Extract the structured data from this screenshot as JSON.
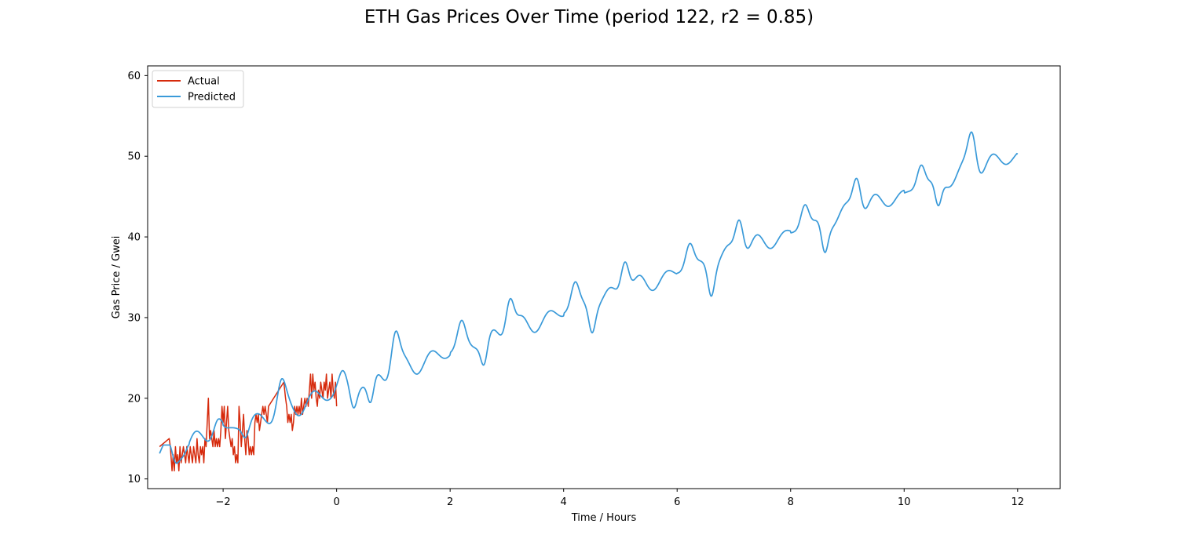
{
  "chart_data": {
    "type": "line",
    "title": "ETH Gas Prices Over Time (period 122, r2 = 0.85)",
    "xlabel": "Time / Hours",
    "ylabel": "Gas Price / Gwei",
    "xlim": [
      -3.33,
      12.75
    ],
    "ylim": [
      8.8,
      61.2
    ],
    "xticks": [
      -2,
      0,
      2,
      4,
      6,
      8,
      10,
      12
    ],
    "yticks": [
      10,
      20,
      30,
      40,
      50,
      60
    ],
    "grid": false,
    "legend_position": "top-left",
    "series": [
      {
        "name": "Actual",
        "color": "#d62a0c",
        "x": [
          -3.12,
          -2.95,
          -2.93,
          -2.9,
          -2.88,
          -2.86,
          -2.84,
          -2.82,
          -2.8,
          -2.78,
          -2.76,
          -2.74,
          -2.72,
          -2.7,
          -2.68,
          -2.66,
          -2.64,
          -2.62,
          -2.6,
          -2.58,
          -2.56,
          -2.54,
          -2.52,
          -2.5,
          -2.48,
          -2.46,
          -2.44,
          -2.42,
          -2.4,
          -2.38,
          -2.36,
          -2.34,
          -2.32,
          -2.3,
          -2.28,
          -2.26,
          -2.24,
          -2.22,
          -2.2,
          -2.18,
          -2.16,
          -2.14,
          -2.12,
          -2.1,
          -2.08,
          -2.06,
          -2.04,
          -2.02,
          -2.0,
          -1.98,
          -1.96,
          -1.94,
          -1.92,
          -1.9,
          -1.88,
          -1.86,
          -1.84,
          -1.82,
          -1.8,
          -1.78,
          -1.76,
          -1.74,
          -1.72,
          -1.7,
          -1.68,
          -1.66,
          -1.64,
          -1.62,
          -1.6,
          -1.58,
          -1.56,
          -1.54,
          -1.52,
          -1.5,
          -1.48,
          -1.46,
          -1.44,
          -1.42,
          -1.4,
          -1.38,
          -1.36,
          -1.34,
          -1.32,
          -1.3,
          -1.28,
          -1.26,
          -1.24,
          -1.22,
          -1.2,
          -0.93,
          -0.9,
          -0.88,
          -0.86,
          -0.84,
          -0.82,
          -0.8,
          -0.78,
          -0.76,
          -0.74,
          -0.72,
          -0.7,
          -0.68,
          -0.66,
          -0.64,
          -0.62,
          -0.6,
          -0.58,
          -0.56,
          -0.54,
          -0.52,
          -0.5,
          -0.48,
          -0.46,
          -0.44,
          -0.42,
          -0.4,
          -0.38,
          -0.36,
          -0.34,
          -0.32,
          -0.3,
          -0.28,
          -0.26,
          -0.24,
          -0.22,
          -0.2,
          -0.18,
          -0.16,
          -0.14,
          -0.12,
          -0.1,
          -0.08,
          -0.06,
          -0.04,
          -0.02,
          0.0
        ],
        "y": [
          14,
          15,
          14,
          11,
          13,
          11,
          14,
          12,
          13,
          11,
          14,
          12,
          13,
          14,
          13,
          12,
          14,
          13,
          12,
          14,
          13,
          12,
          14,
          13,
          12,
          15,
          13,
          12,
          14,
          13,
          14,
          12,
          15,
          14,
          17,
          20,
          15,
          16,
          15,
          14,
          16,
          14,
          15,
          14,
          15,
          14,
          16,
          19,
          17,
          19,
          15,
          17,
          19,
          16,
          15,
          14,
          15,
          13,
          14,
          12,
          13,
          12,
          19,
          17,
          14,
          16,
          18,
          15,
          13,
          16,
          15,
          13,
          14,
          13,
          14,
          13,
          17,
          18,
          17,
          18,
          16,
          17,
          18,
          19,
          18,
          19,
          18,
          17,
          19,
          22,
          20,
          19,
          17,
          18,
          17,
          18,
          16,
          17,
          19,
          18,
          19,
          18,
          19,
          18,
          20,
          18,
          19,
          20,
          19,
          20,
          19,
          21,
          23,
          20,
          23,
          21,
          22,
          20,
          19,
          21,
          20,
          22,
          21,
          20,
          22,
          21,
          23,
          20,
          21,
          22,
          20,
          23,
          21,
          20,
          22,
          19
        ],
        "line_width": 1.5
      },
      {
        "name": "Predicted",
        "color": "#3a9ad9",
        "generated": "model",
        "x_start": -3.12,
        "x_end": 12.0,
        "line_width": 1.7
      }
    ]
  }
}
